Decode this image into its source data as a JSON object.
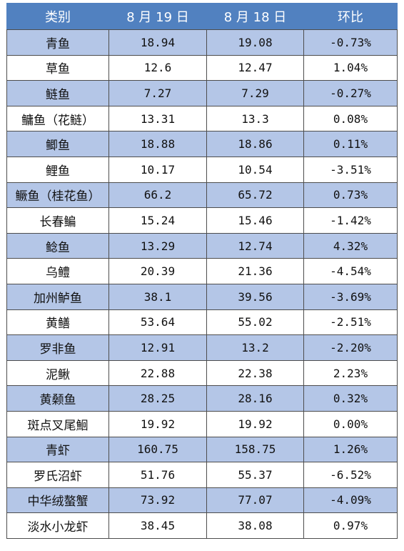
{
  "colors": {
    "header_bg": "#5181c0",
    "band_bg": "#b4c6e7",
    "plain_bg": "#ffffff"
  },
  "table": {
    "headers": [
      "类别",
      "8 月 19 日",
      "8 月 18 日",
      "环比"
    ],
    "rows": [
      {
        "name": "青鱼",
        "aug19": "18.94",
        "aug18": "19.08",
        "change": "-0.73%"
      },
      {
        "name": "草鱼",
        "aug19": "12.6",
        "aug18": "12.47",
        "change": "1.04%"
      },
      {
        "name": "鲢鱼",
        "aug19": "7.27",
        "aug18": "7.29",
        "change": "-0.27%"
      },
      {
        "name": "鳙鱼（花鲢）",
        "aug19": "13.31",
        "aug18": "13.3",
        "change": "0.08%"
      },
      {
        "name": "鲫鱼",
        "aug19": "18.88",
        "aug18": "18.86",
        "change": "0.11%"
      },
      {
        "name": "鲤鱼",
        "aug19": "10.17",
        "aug18": "10.54",
        "change": "-3.51%"
      },
      {
        "name": "鳜鱼（桂花鱼）",
        "aug19": "66.2",
        "aug18": "65.72",
        "change": "0.73%"
      },
      {
        "name": "长春鳊",
        "aug19": "15.24",
        "aug18": "15.46",
        "change": "-1.42%"
      },
      {
        "name": "鲶鱼",
        "aug19": "13.29",
        "aug18": "12.74",
        "change": "4.32%"
      },
      {
        "name": "乌鳢",
        "aug19": "20.39",
        "aug18": "21.36",
        "change": "-4.54%"
      },
      {
        "name": "加州鲈鱼",
        "aug19": "38.1",
        "aug18": "39.56",
        "change": "-3.69%"
      },
      {
        "name": "黄鳝",
        "aug19": "53.64",
        "aug18": "55.02",
        "change": "-2.51%"
      },
      {
        "name": "罗非鱼",
        "aug19": "12.91",
        "aug18": "13.2",
        "change": "-2.20%"
      },
      {
        "name": "泥鳅",
        "aug19": "22.88",
        "aug18": "22.38",
        "change": "2.23%"
      },
      {
        "name": "黄颡鱼",
        "aug19": "28.25",
        "aug18": "28.16",
        "change": "0.32%"
      },
      {
        "name": "斑点叉尾鮰",
        "aug19": "19.92",
        "aug18": "19.92",
        "change": "0.00%"
      },
      {
        "name": "青虾",
        "aug19": "160.75",
        "aug18": "158.75",
        "change": "1.26%"
      },
      {
        "name": "罗氏沼虾",
        "aug19": "51.76",
        "aug18": "55.37",
        "change": "-6.52%"
      },
      {
        "name": "中华绒螯蟹",
        "aug19": "73.92",
        "aug18": "77.07",
        "change": "-4.09%"
      },
      {
        "name": "淡水小龙虾",
        "aug19": "38.45",
        "aug18": "38.08",
        "change": "0.97%"
      }
    ]
  }
}
